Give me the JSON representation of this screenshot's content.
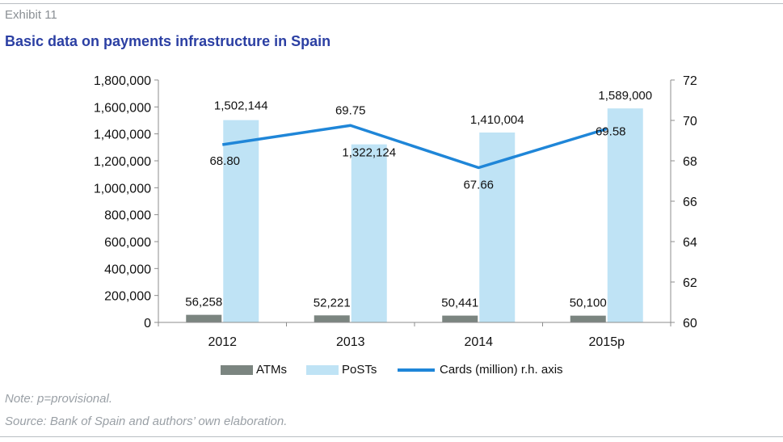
{
  "header": {
    "exhibit": "Exhibit 11",
    "title": "Basic data on payments infrastructure in Spain"
  },
  "footer": {
    "note": "Note: p=provisional.",
    "source": "Source: Bank of Spain and authors’ own elaboration."
  },
  "colors": {
    "atm": "#7b8580",
    "post": "#bfe3f5",
    "cards": "#1f86d8",
    "title": "#2b3fa3"
  },
  "chart_data": {
    "type": "bar",
    "categories": [
      "2012",
      "2013",
      "2014",
      "2015p"
    ],
    "series": [
      {
        "name": "ATMs",
        "type": "bar",
        "axis": "left",
        "values": [
          56258,
          52221,
          50441,
          50100
        ],
        "labels": [
          "56,258",
          "52,221",
          "50,441",
          "50,100"
        ]
      },
      {
        "name": "PoSTs",
        "type": "bar",
        "axis": "left",
        "values": [
          1502144,
          1322124,
          1410004,
          1589000
        ],
        "labels": [
          "1,502,144",
          "1,322,124",
          "1,410,004",
          "1,589,000"
        ]
      },
      {
        "name": "Cards (million) r.h. axis",
        "type": "line",
        "axis": "right",
        "values": [
          68.8,
          69.75,
          67.66,
          69.58
        ],
        "labels": [
          "68.80",
          "69.75",
          "67.66",
          "69.58"
        ]
      }
    ],
    "y_left": {
      "min": 0,
      "max": 1800000,
      "ticks": [
        0,
        200000,
        400000,
        600000,
        800000,
        1000000,
        1200000,
        1400000,
        1600000,
        1800000
      ],
      "tick_labels": [
        "0",
        "200,000",
        "400,000",
        "600,000",
        "800,000",
        "1,000,000",
        "1,200,000",
        "1,400,000",
        "1,600,000",
        "1,800,000"
      ]
    },
    "y_right": {
      "min": 60,
      "max": 72,
      "ticks": [
        60,
        62,
        64,
        66,
        68,
        70,
        72
      ],
      "tick_labels": [
        "60",
        "62",
        "64",
        "66",
        "68",
        "70",
        "72"
      ]
    },
    "legend": {
      "position": "bottom"
    },
    "grid": false
  }
}
